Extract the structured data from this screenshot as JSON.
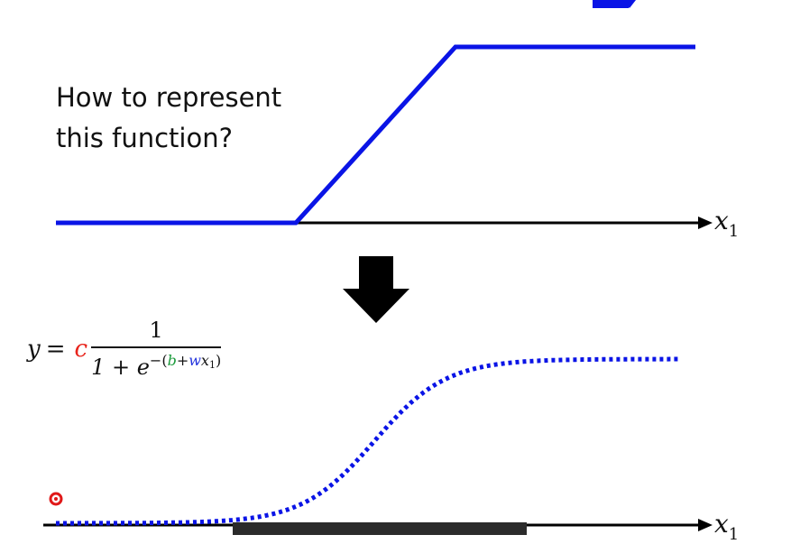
{
  "question": {
    "line1": "How to represent",
    "line2": "this function?"
  },
  "axes": {
    "top": {
      "var": "x",
      "sub": "1"
    },
    "bottom": {
      "var": "x",
      "sub": "1"
    }
  },
  "formula": {
    "lhs": "y",
    "eq": "=",
    "c": "c",
    "numerator": "1",
    "denom_base": "1 + e",
    "exp_minus": "−(",
    "b": "b",
    "plus": "+",
    "w": "w",
    "x": "x",
    "x_sub": "1",
    "close": ")"
  },
  "colors": {
    "curve": "#0a14e6",
    "axis": "#000000",
    "c": "#e8231b",
    "b": "#1a9a3a",
    "w": "#2233dd",
    "arrow": "#000000",
    "cursor": "#e01818"
  },
  "icons": {
    "down_arrow": "down-arrow-icon",
    "cursor": "cursor-dot-icon",
    "corner_arrow": "corner-arrow-icon"
  }
}
